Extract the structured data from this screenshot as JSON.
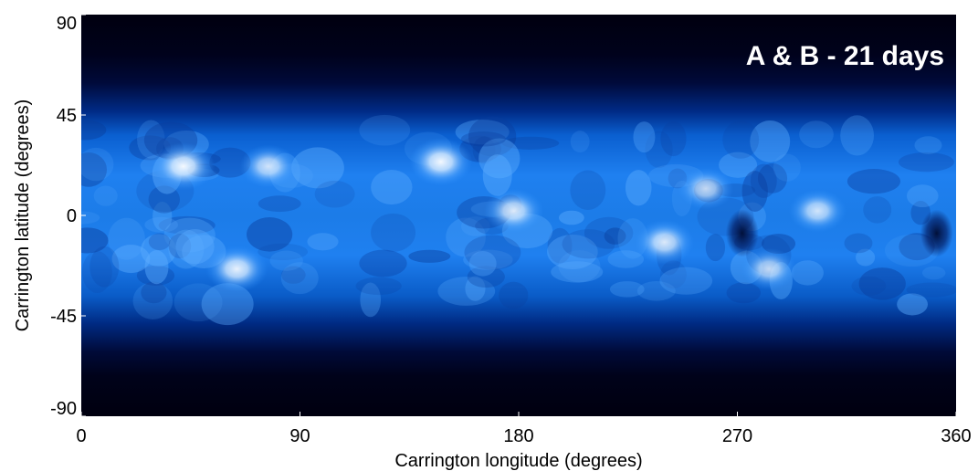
{
  "chart_data": {
    "type": "heatmap",
    "title": "",
    "annotation": "A & B - 21 days",
    "xlabel": "Carrington longitude (degrees)",
    "ylabel": "Carrington latitude (degrees)",
    "xlim": [
      0,
      360
    ],
    "ylim": [
      -90,
      90
    ],
    "x_ticks": [
      0,
      90,
      180,
      270,
      360
    ],
    "x_tick_labels": [
      "0",
      "90",
      "180",
      "270",
      "360"
    ],
    "y_ticks": [
      90,
      45,
      0,
      -45,
      -90
    ],
    "y_tick_labels": [
      "90",
      "45",
      "0",
      "-45",
      "-90"
    ],
    "colormap": [
      "#000010",
      "#001060",
      "#0050c0",
      "#2a90ff",
      "#a8d4ff",
      "#ffffff"
    ],
    "grid": false,
    "background_band_latitude": [
      -55,
      55
    ],
    "bright_features": [
      {
        "lon": 42,
        "lat": 22,
        "intensity": 0.95
      },
      {
        "lon": 77,
        "lat": 22,
        "intensity": 0.8
      },
      {
        "lon": 64,
        "lat": -24,
        "intensity": 0.9
      },
      {
        "lon": 148,
        "lat": 24,
        "intensity": 0.95
      },
      {
        "lon": 178,
        "lat": 2,
        "intensity": 0.85
      },
      {
        "lon": 240,
        "lat": -12,
        "intensity": 0.85
      },
      {
        "lon": 257,
        "lat": 12,
        "intensity": 0.75
      },
      {
        "lon": 303,
        "lat": 2,
        "intensity": 0.8
      },
      {
        "lon": 283,
        "lat": -24,
        "intensity": 0.75
      }
    ],
    "dark_features": [
      {
        "lon": 272,
        "lat": -8
      },
      {
        "lon": 352,
        "lat": -8
      }
    ]
  }
}
